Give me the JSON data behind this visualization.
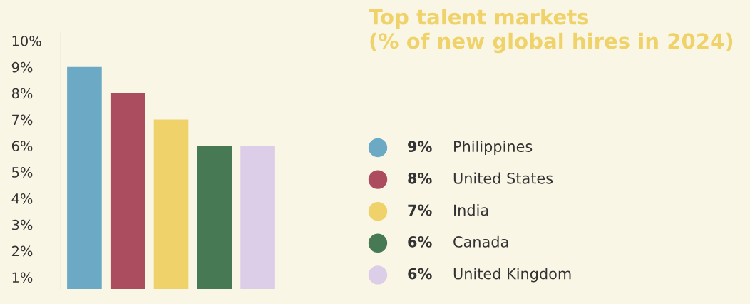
{
  "chart_data": {
    "type": "bar",
    "title": "Top talent markets\n(% of new global hires in 2024)",
    "categories": [
      null,
      null,
      null,
      null,
      null
    ],
    "values": [
      9,
      8,
      7,
      6,
      6
    ],
    "colors": [
      "#6ba9c4",
      "#ac4d5f",
      "#efd36a",
      "#477a54",
      "#dccde8"
    ],
    "annotations": [
      "9%",
      "Philippines",
      "8%",
      "United States",
      "7%",
      "India",
      "6%",
      "Canada",
      "6%",
      "United Kingdom"
    ],
    "ylim": [
      0.55,
      10.3
    ],
    "yticks": [
      {
        "value": 1,
        "label": "1%"
      },
      {
        "value": 2,
        "label": "2%"
      },
      {
        "value": 3,
        "label": "3%"
      },
      {
        "value": 4,
        "label": "4%"
      },
      {
        "value": 5,
        "label": "5%"
      },
      {
        "value": 6,
        "label": "6%"
      },
      {
        "value": 7,
        "label": "7%"
      },
      {
        "value": 8,
        "label": "8%"
      },
      {
        "value": 9,
        "label": "9%"
      },
      {
        "value": 10,
        "label": "10%"
      }
    ],
    "tick_labels": "y",
    "grid": false
  }
}
